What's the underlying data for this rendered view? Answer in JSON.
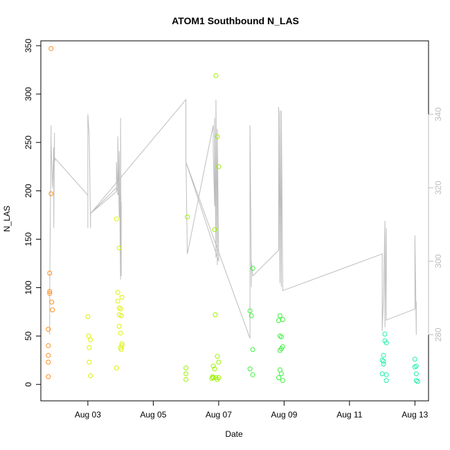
{
  "chart_data": {
    "type": "scatter",
    "title": "ATOM1 Southbound N_LAS",
    "xlabel": "Date",
    "ylabel": "N_LAS",
    "xlim": [
      "2013-08-01T13:30",
      "2013-08-13T10:00"
    ],
    "ylim": [
      -17,
      355
    ],
    "y2lim": [
      262,
      360
    ],
    "x_ticks": [
      {
        "value": "2013-08-03",
        "label": "Aug 03"
      },
      {
        "value": "2013-08-05",
        "label": "Aug 05"
      },
      {
        "value": "2013-08-07",
        "label": "Aug 07"
      },
      {
        "value": "2013-08-09",
        "label": "Aug 09"
      },
      {
        "value": "2013-08-11",
        "label": "Aug 11"
      },
      {
        "value": "2013-08-13",
        "label": "Aug 13"
      }
    ],
    "y_ticks": [
      0,
      50,
      100,
      150,
      200,
      250,
      300,
      350
    ],
    "y2_ticks": [
      280,
      300,
      320,
      340
    ],
    "grid": false,
    "legend": "none",
    "line_color": "#bdbdbd",
    "series": [
      {
        "color": "#ff8c1a",
        "points": [
          {
            "x": "2013-08-01T19:00",
            "y": 8
          },
          {
            "x": "2013-08-01T19:00",
            "y": 23
          },
          {
            "x": "2013-08-01T19:00",
            "y": 30
          },
          {
            "x": "2013-08-01T19:00",
            "y": 40
          },
          {
            "x": "2013-08-01T19:00",
            "y": 57
          },
          {
            "x": "2013-08-01T20:00",
            "y": 94
          },
          {
            "x": "2013-08-01T20:00",
            "y": 96
          },
          {
            "x": "2013-08-01T20:00",
            "y": 115
          },
          {
            "x": "2013-08-01T21:00",
            "y": 197
          },
          {
            "x": "2013-08-01T21:00",
            "y": 347
          },
          {
            "x": "2013-08-01T21:30",
            "y": 85
          },
          {
            "x": "2013-08-01T22:00",
            "y": 77
          }
        ]
      },
      {
        "color": "#ddf000",
        "points": [
          {
            "x": "2013-08-03T00:00",
            "y": 70
          },
          {
            "x": "2013-08-03T00:30",
            "y": 50
          },
          {
            "x": "2013-08-03T01:00",
            "y": 23
          },
          {
            "x": "2013-08-03T01:00",
            "y": 38
          },
          {
            "x": "2013-08-03T02:00",
            "y": 9
          },
          {
            "x": "2013-08-03T02:00",
            "y": 46
          },
          {
            "x": "2013-08-03T21:00",
            "y": 17
          },
          {
            "x": "2013-08-03T21:00",
            "y": 171
          },
          {
            "x": "2013-08-03T22:00",
            "y": 95
          },
          {
            "x": "2013-08-03T22:00",
            "y": 86
          },
          {
            "x": "2013-08-03T23:00",
            "y": 60
          },
          {
            "x": "2013-08-03T23:00",
            "y": 72
          },
          {
            "x": "2013-08-03T23:00",
            "y": 79
          },
          {
            "x": "2013-08-03T23:00",
            "y": 141
          },
          {
            "x": "2013-08-04T00:00",
            "y": 38
          },
          {
            "x": "2013-08-04T00:00",
            "y": 78
          },
          {
            "x": "2013-08-04T00:00",
            "y": 53
          },
          {
            "x": "2013-08-04T00:30",
            "y": 71
          },
          {
            "x": "2013-08-04T00:30",
            "y": 36
          },
          {
            "x": "2013-08-04T01:00",
            "y": 90
          },
          {
            "x": "2013-08-04T01:00",
            "y": 40
          },
          {
            "x": "2013-08-04T01:00",
            "y": 42
          }
        ]
      },
      {
        "color": "#9cf000",
        "points": [
          {
            "x": "2013-08-06T00:00",
            "y": 5
          },
          {
            "x": "2013-08-06T00:00",
            "y": 11
          },
          {
            "x": "2013-08-06T00:00",
            "y": 17
          },
          {
            "x": "2013-08-06T01:00",
            "y": 173
          },
          {
            "x": "2013-08-06T19:00",
            "y": 6
          },
          {
            "x": "2013-08-06T19:30",
            "y": 8
          },
          {
            "x": "2013-08-06T20:00",
            "y": 19
          },
          {
            "x": "2013-08-06T20:00",
            "y": 7
          },
          {
            "x": "2013-08-06T21:00",
            "y": 16
          },
          {
            "x": "2013-08-06T21:00",
            "y": 160
          },
          {
            "x": "2013-08-06T21:30",
            "y": 72
          },
          {
            "x": "2013-08-06T22:00",
            "y": 7
          },
          {
            "x": "2013-08-06T22:00",
            "y": 319
          },
          {
            "x": "2013-08-06T23:00",
            "y": 5
          },
          {
            "x": "2013-08-06T23:00",
            "y": 29
          },
          {
            "x": "2013-08-06T23:00",
            "y": 256
          },
          {
            "x": "2013-08-07T00:00",
            "y": 225
          },
          {
            "x": "2013-08-07T00:00",
            "y": 7
          },
          {
            "x": "2013-08-07T00:00",
            "y": 23
          }
        ]
      },
      {
        "color": "#3cf03c",
        "points": [
          {
            "x": "2013-08-07T23:00",
            "y": 16
          },
          {
            "x": "2013-08-07T23:00",
            "y": 76
          },
          {
            "x": "2013-08-08T00:00",
            "y": 71
          },
          {
            "x": "2013-08-08T01:00",
            "y": 10
          },
          {
            "x": "2013-08-08T01:00",
            "y": 36
          },
          {
            "x": "2013-08-08T01:00",
            "y": 120
          },
          {
            "x": "2013-08-08T20:00",
            "y": 7
          },
          {
            "x": "2013-08-08T20:00",
            "y": 66
          },
          {
            "x": "2013-08-08T21:00",
            "y": 15
          },
          {
            "x": "2013-08-08T21:00",
            "y": 35
          },
          {
            "x": "2013-08-08T21:00",
            "y": 50
          },
          {
            "x": "2013-08-08T21:00",
            "y": 71
          },
          {
            "x": "2013-08-08T22:00",
            "y": 11
          },
          {
            "x": "2013-08-08T22:00",
            "y": 49
          },
          {
            "x": "2013-08-08T22:00",
            "y": 37
          },
          {
            "x": "2013-08-08T23:00",
            "y": 4
          },
          {
            "x": "2013-08-08T23:00",
            "y": 67
          },
          {
            "x": "2013-08-08T23:00",
            "y": 39
          }
        ]
      },
      {
        "color": "#1ff0a6",
        "points": [
          {
            "x": "2013-08-12T00:00",
            "y": 25
          },
          {
            "x": "2013-08-12T00:00",
            "y": 11
          },
          {
            "x": "2013-08-12T01:00",
            "y": 24
          },
          {
            "x": "2013-08-12T01:00",
            "y": 30
          },
          {
            "x": "2013-08-12T01:00",
            "y": 21
          },
          {
            "x": "2013-08-12T02:00",
            "y": 45
          },
          {
            "x": "2013-08-12T02:00",
            "y": 52
          },
          {
            "x": "2013-08-12T03:00",
            "y": 4
          },
          {
            "x": "2013-08-12T03:00",
            "y": 10
          },
          {
            "x": "2013-08-12T03:00",
            "y": 43
          },
          {
            "x": "2013-08-13T00:00",
            "y": 26
          },
          {
            "x": "2013-08-13T00:00",
            "y": 18
          },
          {
            "x": "2013-08-13T01:00",
            "y": 19
          },
          {
            "x": "2013-08-13T01:00",
            "y": 11
          },
          {
            "x": "2013-08-13T01:00",
            "y": 4
          },
          {
            "x": "2013-08-13T02:00",
            "y": 3
          }
        ]
      }
    ],
    "y2_line": [
      [
        "2013-08-01T20:00",
        280
      ],
      [
        "2013-08-01T20:00",
        292
      ],
      [
        "2013-08-01T21:00",
        337
      ],
      [
        "2013-08-01T21:00",
        332
      ],
      [
        "2013-08-01T22:00",
        320
      ],
      [
        "2013-08-01T23:00",
        331
      ],
      [
        "2013-08-01T23:00",
        309
      ],
      [
        "2013-08-01T23:30",
        335
      ],
      [
        "2013-08-01T23:30",
        327
      ],
      [
        "2013-08-02T00:00",
        328
      ],
      [
        "2013-08-03T00:00",
        318
      ],
      [
        "2013-08-03T00:00",
        309
      ],
      [
        "2013-08-03T00:00",
        340
      ],
      [
        "2013-08-03T01:00",
        334
      ],
      [
        "2013-08-03T02:00",
        309
      ],
      [
        "2013-08-03T02:00",
        313
      ],
      [
        "2013-08-03T21:00",
        319
      ],
      [
        "2013-08-03T21:00",
        327
      ],
      [
        "2013-08-03T22:00",
        318
      ],
      [
        "2013-08-03T22:00",
        334
      ],
      [
        "2013-08-03T23:00",
        312
      ],
      [
        "2013-08-03T23:00",
        330
      ],
      [
        "2013-08-04T00:00",
        295
      ],
      [
        "2013-08-04T00:00",
        339
      ],
      [
        "2013-08-04T00:30",
        296
      ],
      [
        "2013-08-04T00:30",
        316
      ],
      [
        "2013-08-03T21:00",
        320
      ],
      [
        "2013-08-03T02:00",
        313
      ],
      [
        "2013-08-06T00:00",
        344
      ],
      [
        "2013-08-06T00:00",
        328
      ],
      [
        "2013-08-06T01:00",
        302
      ],
      [
        "2013-08-06T20:00",
        337
      ],
      [
        "2013-08-06T20:00",
        330
      ],
      [
        "2013-08-06T21:00",
        315
      ],
      [
        "2013-08-06T21:00",
        339
      ],
      [
        "2013-08-06T22:00",
        301
      ],
      [
        "2013-08-06T22:00",
        344
      ],
      [
        "2013-08-06T23:00",
        299
      ],
      [
        "2013-08-06T23:00",
        336
      ],
      [
        "2013-08-07T00:00",
        300
      ],
      [
        "2013-08-06T00:00",
        327
      ],
      [
        "2013-08-07T23:00",
        279
      ],
      [
        "2013-08-07T23:00",
        337
      ],
      [
        "2013-08-08T00:00",
        293
      ],
      [
        "2013-08-08T00:00",
        300
      ],
      [
        "2013-08-08T01:00",
        296
      ],
      [
        "2013-08-08T20:00",
        303
      ],
      [
        "2013-08-08T20:00",
        342
      ],
      [
        "2013-08-08T21:00",
        294
      ],
      [
        "2013-08-08T21:00",
        341
      ],
      [
        "2013-08-08T22:00",
        293
      ],
      [
        "2013-08-08T22:00",
        341
      ],
      [
        "2013-08-08T23:00",
        292
      ],
      [
        "2013-08-12T00:00",
        302
      ],
      [
        "2013-08-12T00:00",
        281
      ],
      [
        "2013-08-12T01:00",
        291
      ],
      [
        "2013-08-12T02:00",
        311
      ],
      [
        "2013-08-12T02:00",
        282
      ],
      [
        "2013-08-12T03:00",
        309
      ],
      [
        "2013-08-12T03:00",
        284
      ],
      [
        "2013-08-13T00:00",
        287
      ],
      [
        "2013-08-13T00:00",
        307
      ],
      [
        "2013-08-13T01:00",
        280
      ],
      [
        "2013-08-13T01:00",
        289
      ]
    ]
  }
}
